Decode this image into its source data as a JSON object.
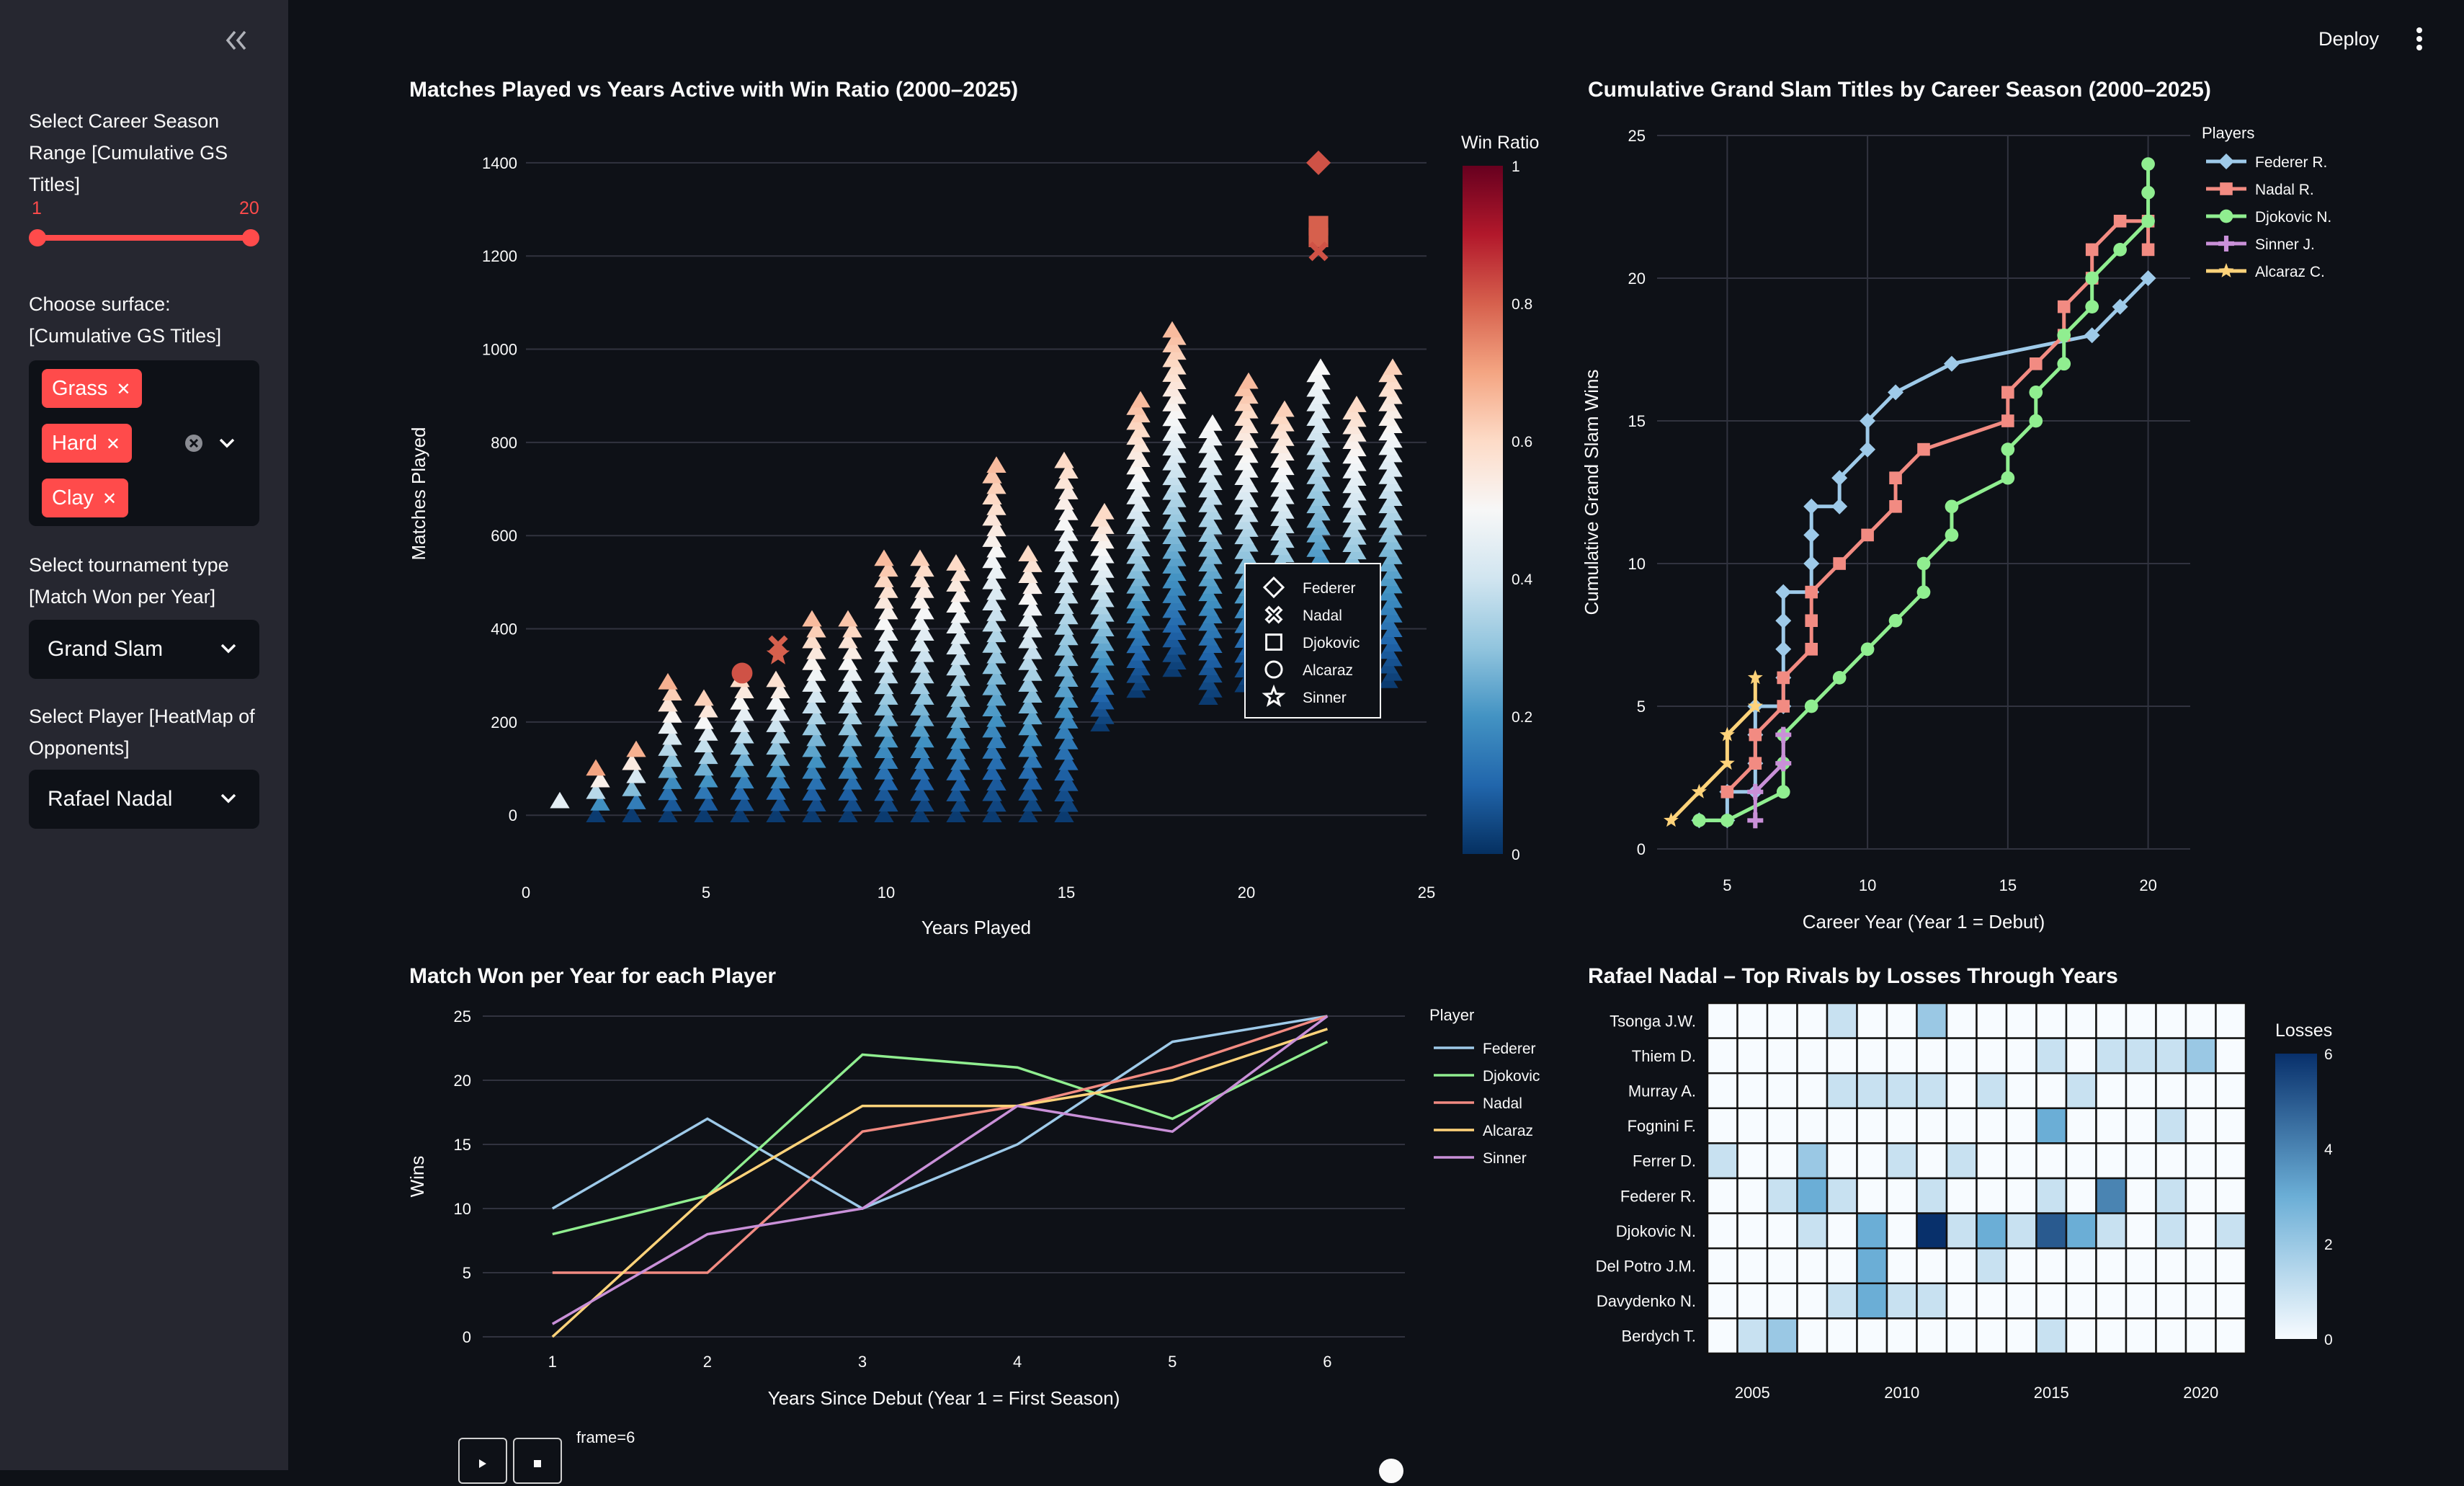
{
  "header": {
    "deploy_label": "Deploy"
  },
  "sidebar": {
    "season_range": {
      "label": "Select Career Season\nRange [Cumulative GS\nTitles]",
      "min": 1,
      "max": 20,
      "low": 1,
      "high": 20,
      "low_label": "1",
      "high_label": "20"
    },
    "surface": {
      "label": "Choose surface:\n[Cumulative GS Titles]",
      "tags": [
        "Grass",
        "Hard",
        "Clay"
      ]
    },
    "tournament": {
      "label": "Select tournament type\n[Match Won per Year]",
      "value": "Grand Slam"
    },
    "player": {
      "label": "Select Player [HeatMap of\nOpponents]",
      "value": "Rafael Nadal"
    }
  },
  "frame_label": "frame=6",
  "chart_data": [
    {
      "type": "scatter",
      "title": "Matches Played vs Years Active with Win Ratio (2000–2025)",
      "xlabel": "Years Played",
      "ylabel": "Matches Played",
      "xlim": [
        0,
        25
      ],
      "ylim": [
        -60,
        1440
      ],
      "xticks": [
        0,
        5,
        10,
        15,
        20,
        25
      ],
      "yticks": [
        0,
        200,
        400,
        600,
        800,
        1000,
        1200,
        1400
      ],
      "colorbar": {
        "title": "Win Ratio",
        "ticks": [
          0,
          0.2,
          0.4,
          0.6,
          0.8,
          1
        ],
        "range": [
          0,
          1
        ]
      },
      "legend": [
        "Federer",
        "Nadal",
        "Djokovic",
        "Alcaraz",
        "Sinner"
      ],
      "highlights": [
        {
          "x": 22,
          "y": 1400,
          "marker": "diamond",
          "ratio": 0.82
        },
        {
          "x": 22,
          "y": 1265,
          "marker": "square",
          "ratio": 0.8
        },
        {
          "x": 22,
          "y": 1240,
          "marker": "square",
          "ratio": 0.8
        },
        {
          "x": 22,
          "y": 1210,
          "marker": "x",
          "ratio": 0.82
        },
        {
          "x": 6,
          "y": 305,
          "marker": "circle",
          "ratio": 0.82
        },
        {
          "x": 7,
          "y": 365,
          "marker": "x",
          "ratio": 0.8
        },
        {
          "x": 7,
          "y": 345,
          "marker": "star",
          "ratio": 0.8
        }
      ],
      "columns": [
        {
          "x": 1,
          "max": 30,
          "rmax": 0.45
        },
        {
          "x": 2,
          "max": 100,
          "rmax": 0.7
        },
        {
          "x": 3,
          "max": 140,
          "rmax": 0.68
        },
        {
          "x": 4,
          "max": 285,
          "rmax": 0.68
        },
        {
          "x": 5,
          "max": 250,
          "rmax": 0.62
        },
        {
          "x": 6,
          "max": 290,
          "rmax": 0.6
        },
        {
          "x": 7,
          "max": 290,
          "rmax": 0.58
        },
        {
          "x": 8,
          "max": 420,
          "rmax": 0.66
        },
        {
          "x": 9,
          "max": 420,
          "rmax": 0.64
        },
        {
          "x": 10,
          "max": 550,
          "rmax": 0.66
        },
        {
          "x": 11,
          "max": 550,
          "rmax": 0.62
        },
        {
          "x": 12,
          "max": 540,
          "rmax": 0.6
        },
        {
          "x": 13,
          "max": 750,
          "rmax": 0.66
        },
        {
          "x": 14,
          "max": 560,
          "rmax": 0.6
        },
        {
          "x": 15,
          "max": 760,
          "rmax": 0.6
        },
        {
          "x": 16,
          "max": 650,
          "rmax": 0.6
        },
        {
          "x": 17,
          "max": 890,
          "rmax": 0.66
        },
        {
          "x": 18,
          "max": 1040,
          "rmax": 0.66
        },
        {
          "x": 19,
          "max": 840,
          "rmax": 0.5
        },
        {
          "x": 20,
          "max": 930,
          "rmax": 0.66
        },
        {
          "x": 21,
          "max": 870,
          "rmax": 0.62
        },
        {
          "x": 22,
          "max": 960,
          "rmax": 0.5
        },
        {
          "x": 23,
          "max": 880,
          "rmax": 0.6
        },
        {
          "x": 24,
          "max": 960,
          "rmax": 0.62
        }
      ]
    },
    {
      "type": "line",
      "title": "Cumulative Grand Slam Titles by Career Season (2000–2025)",
      "xlabel": "Career Year (Year 1 = Debut)",
      "ylabel": "Cumulative Grand Slam Wins",
      "xlim": [
        2.5,
        21.5
      ],
      "ylim": [
        0,
        25
      ],
      "xticks": [
        5,
        10,
        15,
        20
      ],
      "yticks": [
        0,
        5,
        10,
        15,
        20,
        25
      ],
      "legend_title": "Players",
      "series": [
        {
          "name": "Federer R.",
          "color": "#9ecae9",
          "marker": "diamond",
          "points": [
            [
              4,
              1
            ],
            [
              5,
              1
            ],
            [
              5,
              2
            ],
            [
              6,
              2
            ],
            [
              6,
              3
            ],
            [
              6,
              4
            ],
            [
              6,
              5
            ],
            [
              7,
              5
            ],
            [
              7,
              6
            ],
            [
              7,
              7
            ],
            [
              7,
              8
            ],
            [
              7,
              9
            ],
            [
              8,
              9
            ],
            [
              8,
              10
            ],
            [
              8,
              11
            ],
            [
              8,
              12
            ],
            [
              9,
              12
            ],
            [
              9,
              13
            ],
            [
              10,
              14
            ],
            [
              10,
              15
            ],
            [
              11,
              16
            ],
            [
              13,
              17
            ],
            [
              18,
              18
            ],
            [
              19,
              19
            ],
            [
              20,
              20
            ]
          ]
        },
        {
          "name": "Nadal R.",
          "color": "#f28b82",
          "marker": "square",
          "points": [
            [
              5,
              2
            ],
            [
              6,
              3
            ],
            [
              6,
              4
            ],
            [
              7,
              5
            ],
            [
              7,
              6
            ],
            [
              8,
              7
            ],
            [
              8,
              8
            ],
            [
              8,
              9
            ],
            [
              9,
              10
            ],
            [
              10,
              11
            ],
            [
              11,
              12
            ],
            [
              11,
              13
            ],
            [
              12,
              14
            ],
            [
              15,
              15
            ],
            [
              15,
              16
            ],
            [
              16,
              17
            ],
            [
              17,
              18
            ],
            [
              17,
              19
            ],
            [
              18,
              20
            ],
            [
              18,
              21
            ],
            [
              19,
              22
            ],
            [
              20,
              22
            ],
            [
              20,
              21
            ]
          ]
        },
        {
          "name": "Djokovic N.",
          "color": "#90ee90",
          "marker": "circle",
          "points": [
            [
              4,
              1
            ],
            [
              5,
              1
            ],
            [
              7,
              2
            ],
            [
              7,
              3
            ],
            [
              7,
              4
            ],
            [
              8,
              5
            ],
            [
              9,
              6
            ],
            [
              10,
              7
            ],
            [
              11,
              8
            ],
            [
              12,
              9
            ],
            [
              12,
              10
            ],
            [
              13,
              11
            ],
            [
              13,
              12
            ],
            [
              15,
              13
            ],
            [
              15,
              14
            ],
            [
              16,
              15
            ],
            [
              16,
              16
            ],
            [
              17,
              17
            ],
            [
              17,
              18
            ],
            [
              18,
              19
            ],
            [
              18,
              20
            ],
            [
              19,
              21
            ],
            [
              20,
              22
            ],
            [
              20,
              23
            ],
            [
              20,
              24
            ]
          ]
        },
        {
          "name": "Sinner J.",
          "color": "#c990d8",
          "marker": "cross",
          "points": [
            [
              6,
              1
            ],
            [
              6,
              2
            ],
            [
              7,
              3
            ],
            [
              7,
              4
            ]
          ]
        },
        {
          "name": "Alcaraz C.",
          "color": "#ffd37a",
          "marker": "star",
          "points": [
            [
              3,
              1
            ],
            [
              4,
              2
            ],
            [
              5,
              3
            ],
            [
              5,
              4
            ],
            [
              6,
              5
            ],
            [
              6,
              6
            ]
          ]
        }
      ]
    },
    {
      "type": "line",
      "title": "Match Won per Year for each Player",
      "xlabel": "Years Since Debut  (Year 1 = First Season)",
      "ylabel": "Wins",
      "xlim": [
        0.55,
        6.5
      ],
      "ylim": [
        0,
        25
      ],
      "xticks": [
        1,
        2,
        3,
        4,
        5,
        6
      ],
      "yticks": [
        0,
        5,
        10,
        15,
        20,
        25
      ],
      "legend_title": "Player",
      "series": [
        {
          "name": "Federer",
          "color": "#9ecae9",
          "values": [
            10,
            17,
            10,
            15,
            23,
            25
          ]
        },
        {
          "name": "Djokovic",
          "color": "#90ee90",
          "values": [
            8,
            11,
            22,
            21,
            17,
            23
          ]
        },
        {
          "name": "Nadal",
          "color": "#f28b82",
          "values": [
            5,
            5,
            16,
            18,
            21,
            25
          ]
        },
        {
          "name": "Alcaraz",
          "color": "#ffd37a",
          "values": [
            0,
            11,
            18,
            18,
            20,
            24
          ]
        },
        {
          "name": "Sinner",
          "color": "#c990d8",
          "values": [
            1,
            8,
            10,
            18,
            16,
            25
          ]
        }
      ]
    },
    {
      "type": "heatmap",
      "title": "Rafael Nadal – Top Rivals by Losses Through Years",
      "colorbar_title": "Losses",
      "colorbar_ticks": [
        0,
        2,
        4,
        6
      ],
      "xticks": [
        2005,
        2010,
        2015,
        2020
      ],
      "years": [
        2004,
        2005,
        2006,
        2007,
        2008,
        2009,
        2010,
        2011,
        2012,
        2013,
        2014,
        2015,
        2016,
        2017,
        2018,
        2019,
        2020,
        2021
      ],
      "rows": [
        "Tsonga J.W.",
        "Thiem D.",
        "Murray A.",
        "Fognini F.",
        "Ferrer D.",
        "Federer R.",
        "Djokovic N.",
        "Del Potro J.M.",
        "Davydenko N.",
        "Berdych T."
      ],
      "values": [
        [
          0,
          0,
          0,
          0,
          1,
          0,
          0,
          2,
          0,
          0,
          0,
          0,
          0,
          0,
          0,
          0,
          0,
          0
        ],
        [
          0,
          0,
          0,
          0,
          0,
          0,
          0,
          0,
          0,
          0,
          0,
          1,
          0,
          1,
          1,
          1,
          2,
          0
        ],
        [
          0,
          0,
          0,
          0,
          1,
          1,
          1,
          1,
          0,
          1,
          0,
          0,
          1,
          0,
          0,
          0,
          0,
          0
        ],
        [
          0,
          0,
          0,
          0,
          0,
          0,
          0,
          0,
          0,
          0,
          0,
          3,
          0,
          0,
          0,
          1,
          0,
          0
        ],
        [
          1,
          0,
          0,
          2,
          0,
          0,
          1,
          0,
          1,
          0,
          0,
          0,
          0,
          0,
          0,
          0,
          0,
          0
        ],
        [
          0,
          0,
          1,
          3,
          1,
          0,
          0,
          1,
          0,
          0,
          0,
          1,
          0,
          4,
          0,
          1,
          0,
          0
        ],
        [
          0,
          0,
          0,
          1,
          0,
          3,
          0,
          6,
          1,
          3,
          1,
          5,
          3,
          1,
          0,
          1,
          0,
          1
        ],
        [
          0,
          0,
          0,
          0,
          0,
          3,
          0,
          0,
          0,
          1,
          0,
          0,
          0,
          0,
          0,
          0,
          0,
          0
        ],
        [
          0,
          0,
          0,
          0,
          1,
          3,
          1,
          1,
          0,
          0,
          0,
          0,
          0,
          0,
          0,
          0,
          0,
          0
        ],
        [
          0,
          1,
          2,
          0,
          0,
          0,
          0,
          0,
          0,
          0,
          0,
          1,
          0,
          0,
          0,
          0,
          0,
          0
        ]
      ]
    }
  ]
}
